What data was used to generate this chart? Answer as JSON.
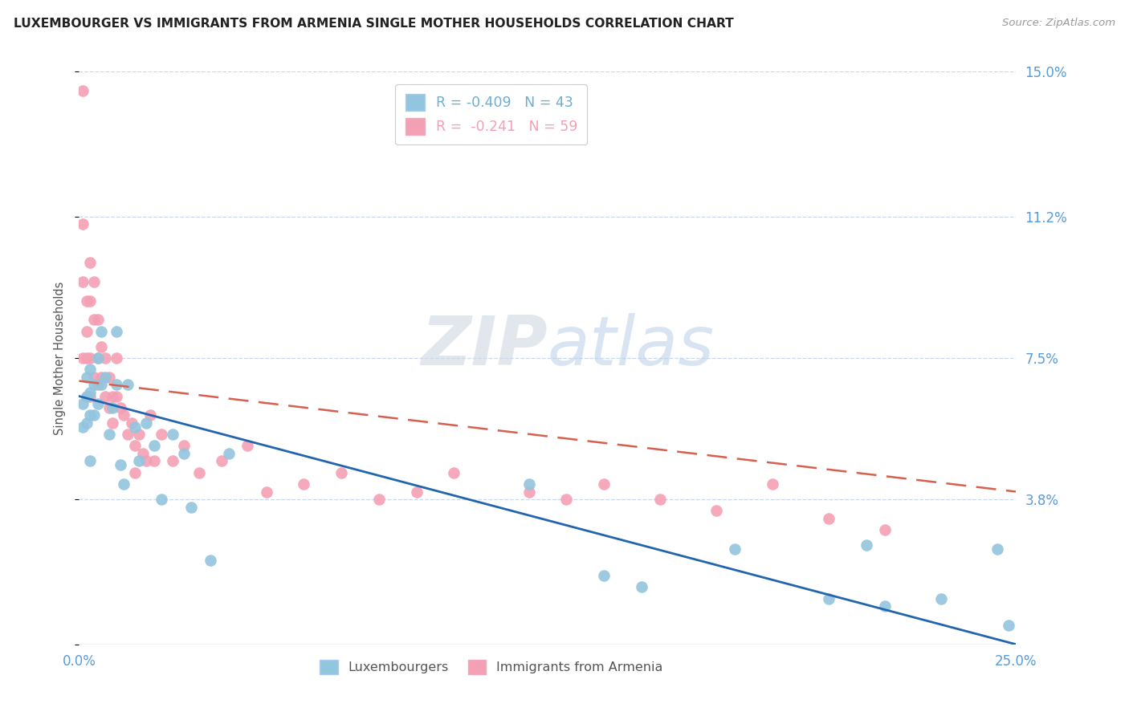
{
  "title": "LUXEMBOURGER VS IMMIGRANTS FROM ARMENIA SINGLE MOTHER HOUSEHOLDS CORRELATION CHART",
  "source": "Source: ZipAtlas.com",
  "ylabel": "Single Mother Households",
  "legend_entries": [
    {
      "label": "R = -0.409   N = 43",
      "color": "#6baed6"
    },
    {
      "label": "R =  -0.241   N = 59",
      "color": "#f4a0b4"
    }
  ],
  "legend_labels": [
    "Luxembourgers",
    "Immigrants from Armenia"
  ],
  "xlim": [
    0.0,
    0.25
  ],
  "ylim": [
    0.0,
    0.15
  ],
  "yticks": [
    0.0,
    0.038,
    0.075,
    0.112,
    0.15
  ],
  "ytick_labels": [
    "",
    "3.8%",
    "7.5%",
    "11.2%",
    "15.0%"
  ],
  "xticks": [
    0.0,
    0.05,
    0.1,
    0.15,
    0.2,
    0.25
  ],
  "xtick_labels": [
    "0.0%",
    "",
    "",
    "",
    "",
    "25.0%"
  ],
  "blue_scatter_color": "#92c5de",
  "pink_scatter_color": "#f4a0b4",
  "blue_line_color": "#2166ac",
  "pink_line_color": "#d6604d",
  "right_axis_color": "#5b9bd5",
  "grid_color": "#c8d8ec",
  "background_color": "#ffffff",
  "watermark_zip": "ZIP",
  "watermark_atlas": "atlas",
  "lux_x": [
    0.001,
    0.001,
    0.002,
    0.002,
    0.002,
    0.003,
    0.003,
    0.003,
    0.003,
    0.004,
    0.004,
    0.005,
    0.005,
    0.006,
    0.006,
    0.007,
    0.008,
    0.009,
    0.01,
    0.01,
    0.011,
    0.012,
    0.013,
    0.015,
    0.016,
    0.018,
    0.02,
    0.022,
    0.025,
    0.028,
    0.03,
    0.035,
    0.04,
    0.12,
    0.14,
    0.15,
    0.175,
    0.2,
    0.21,
    0.215,
    0.23,
    0.245,
    0.248
  ],
  "lux_y": [
    0.063,
    0.057,
    0.07,
    0.065,
    0.058,
    0.072,
    0.066,
    0.06,
    0.048,
    0.068,
    0.06,
    0.075,
    0.063,
    0.082,
    0.068,
    0.07,
    0.055,
    0.062,
    0.082,
    0.068,
    0.047,
    0.042,
    0.068,
    0.057,
    0.048,
    0.058,
    0.052,
    0.038,
    0.055,
    0.05,
    0.036,
    0.022,
    0.05,
    0.042,
    0.018,
    0.015,
    0.025,
    0.012,
    0.026,
    0.01,
    0.012,
    0.025,
    0.005
  ],
  "arm_x": [
    0.001,
    0.001,
    0.001,
    0.001,
    0.002,
    0.002,
    0.002,
    0.002,
    0.003,
    0.003,
    0.003,
    0.003,
    0.004,
    0.004,
    0.004,
    0.005,
    0.005,
    0.005,
    0.006,
    0.006,
    0.007,
    0.007,
    0.008,
    0.008,
    0.009,
    0.009,
    0.01,
    0.01,
    0.011,
    0.012,
    0.013,
    0.014,
    0.015,
    0.015,
    0.016,
    0.017,
    0.018,
    0.019,
    0.02,
    0.022,
    0.025,
    0.028,
    0.032,
    0.038,
    0.045,
    0.05,
    0.06,
    0.07,
    0.08,
    0.09,
    0.1,
    0.12,
    0.13,
    0.14,
    0.155,
    0.17,
    0.185,
    0.2,
    0.215
  ],
  "arm_y": [
    0.145,
    0.11,
    0.095,
    0.075,
    0.09,
    0.082,
    0.075,
    0.065,
    0.1,
    0.09,
    0.075,
    0.065,
    0.095,
    0.085,
    0.07,
    0.085,
    0.075,
    0.068,
    0.078,
    0.07,
    0.075,
    0.065,
    0.07,
    0.062,
    0.065,
    0.058,
    0.075,
    0.065,
    0.062,
    0.06,
    0.055,
    0.058,
    0.052,
    0.045,
    0.055,
    0.05,
    0.048,
    0.06,
    0.048,
    0.055,
    0.048,
    0.052,
    0.045,
    0.048,
    0.052,
    0.04,
    0.042,
    0.045,
    0.038,
    0.04,
    0.045,
    0.04,
    0.038,
    0.042,
    0.038,
    0.035,
    0.042,
    0.033,
    0.03
  ],
  "blue_trend_x0": 0.0,
  "blue_trend_y0": 0.065,
  "blue_trend_x1": 0.25,
  "blue_trend_y1": 0.0,
  "pink_trend_x0": 0.0,
  "pink_trend_y0": 0.069,
  "pink_trend_x1": 0.25,
  "pink_trend_y1": 0.04
}
